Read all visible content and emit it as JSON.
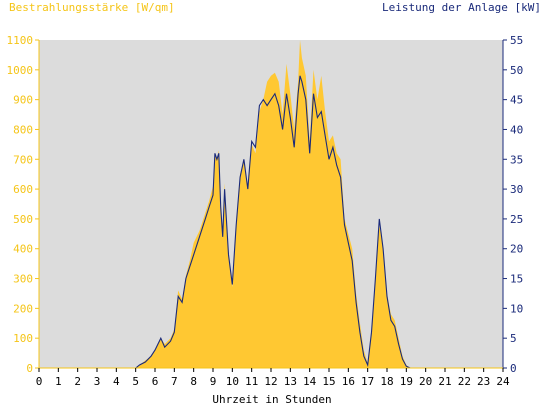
{
  "colors": {
    "left_axis": "#f5c518",
    "right_axis": "#1a2a7a",
    "plot_bg": "#dcdcdc",
    "area": "#ffc832",
    "line": "#1a2a7a",
    "axis_text": "#000000"
  },
  "chart_data": {
    "type": "area",
    "left_title": "Bestrahlungsstärke [W/qm]",
    "right_title": "Leistung der Anlage [kW]",
    "xlabel": "Uhrzeit in Stunden",
    "xlim": [
      0,
      24
    ],
    "ylim_left": [
      0,
      1100
    ],
    "ylim_right": [
      0,
      55
    ],
    "x_ticks": [
      0,
      1,
      2,
      3,
      4,
      5,
      6,
      7,
      8,
      9,
      10,
      11,
      12,
      13,
      14,
      15,
      16,
      17,
      18,
      19,
      20,
      21,
      22,
      23,
      24
    ],
    "y_ticks_left": [
      0,
      100,
      200,
      300,
      400,
      500,
      600,
      700,
      800,
      900,
      1000,
      1100
    ],
    "y_ticks_right": [
      0,
      5,
      10,
      15,
      20,
      25,
      30,
      35,
      40,
      45,
      50,
      55
    ],
    "grid": false,
    "series": [
      {
        "name": "Bestrahlungsstärke [W/qm]",
        "axis": "left",
        "kind": "area",
        "points": [
          [
            0,
            0
          ],
          [
            5.0,
            0
          ],
          [
            5.2,
            10
          ],
          [
            5.5,
            25
          ],
          [
            5.8,
            40
          ],
          [
            6.0,
            60
          ],
          [
            6.3,
            100
          ],
          [
            6.5,
            80
          ],
          [
            6.8,
            100
          ],
          [
            7.0,
            130
          ],
          [
            7.2,
            260
          ],
          [
            7.4,
            230
          ],
          [
            7.6,
            310
          ],
          [
            7.8,
            360
          ],
          [
            8.0,
            420
          ],
          [
            8.3,
            460
          ],
          [
            8.6,
            520
          ],
          [
            8.8,
            560
          ],
          [
            9.0,
            610
          ],
          [
            9.1,
            720
          ],
          [
            9.2,
            700
          ],
          [
            9.3,
            730
          ],
          [
            9.4,
            560
          ],
          [
            9.5,
            450
          ],
          [
            9.6,
            620
          ],
          [
            9.8,
            380
          ],
          [
            10.0,
            270
          ],
          [
            10.2,
            480
          ],
          [
            10.4,
            650
          ],
          [
            10.6,
            700
          ],
          [
            10.8,
            600
          ],
          [
            11.0,
            750
          ],
          [
            11.2,
            720
          ],
          [
            11.4,
            860
          ],
          [
            11.6,
            900
          ],
          [
            11.8,
            960
          ],
          [
            12.0,
            980
          ],
          [
            12.2,
            990
          ],
          [
            12.4,
            960
          ],
          [
            12.6,
            850
          ],
          [
            12.8,
            1020
          ],
          [
            13.0,
            920
          ],
          [
            13.2,
            800
          ],
          [
            13.4,
            960
          ],
          [
            13.5,
            1100
          ],
          [
            13.6,
            1040
          ],
          [
            13.8,
            980
          ],
          [
            14.0,
            760
          ],
          [
            14.2,
            1000
          ],
          [
            14.4,
            900
          ],
          [
            14.6,
            980
          ],
          [
            14.8,
            860
          ],
          [
            15.0,
            760
          ],
          [
            15.2,
            780
          ],
          [
            15.4,
            720
          ],
          [
            15.6,
            700
          ],
          [
            15.8,
            500
          ],
          [
            16.0,
            450
          ],
          [
            16.2,
            400
          ],
          [
            16.4,
            250
          ],
          [
            16.6,
            150
          ],
          [
            16.8,
            60
          ],
          [
            17.0,
            15
          ],
          [
            17.2,
            120
          ],
          [
            17.4,
            300
          ],
          [
            17.6,
            480
          ],
          [
            17.8,
            400
          ],
          [
            18.0,
            250
          ],
          [
            18.2,
            180
          ],
          [
            18.4,
            160
          ],
          [
            18.6,
            100
          ],
          [
            18.8,
            40
          ],
          [
            19.0,
            10
          ],
          [
            19.2,
            0
          ],
          [
            24,
            0
          ]
        ]
      },
      {
        "name": "Leistung der Anlage [kW]",
        "axis": "right",
        "kind": "line",
        "points": [
          [
            0,
            0
          ],
          [
            5.0,
            0
          ],
          [
            5.2,
            0.5
          ],
          [
            5.5,
            1
          ],
          [
            5.8,
            2
          ],
          [
            6.0,
            3
          ],
          [
            6.3,
            5
          ],
          [
            6.5,
            3.5
          ],
          [
            6.8,
            4.5
          ],
          [
            7.0,
            6
          ],
          [
            7.2,
            12
          ],
          [
            7.4,
            11
          ],
          [
            7.6,
            15
          ],
          [
            7.8,
            17
          ],
          [
            8.0,
            19
          ],
          [
            8.3,
            22
          ],
          [
            8.6,
            25
          ],
          [
            8.8,
            27
          ],
          [
            9.0,
            29
          ],
          [
            9.1,
            36
          ],
          [
            9.2,
            35
          ],
          [
            9.3,
            36
          ],
          [
            9.4,
            27
          ],
          [
            9.5,
            22
          ],
          [
            9.6,
            30
          ],
          [
            9.8,
            19
          ],
          [
            10.0,
            14
          ],
          [
            10.2,
            24
          ],
          [
            10.4,
            32
          ],
          [
            10.6,
            35
          ],
          [
            10.8,
            30
          ],
          [
            11.0,
            38
          ],
          [
            11.2,
            37
          ],
          [
            11.4,
            44
          ],
          [
            11.6,
            45
          ],
          [
            11.8,
            44
          ],
          [
            12.0,
            45
          ],
          [
            12.2,
            46
          ],
          [
            12.4,
            44
          ],
          [
            12.6,
            40
          ],
          [
            12.8,
            46
          ],
          [
            13.0,
            42
          ],
          [
            13.2,
            37
          ],
          [
            13.4,
            46
          ],
          [
            13.5,
            49
          ],
          [
            13.6,
            48
          ],
          [
            13.8,
            45
          ],
          [
            14.0,
            36
          ],
          [
            14.2,
            46
          ],
          [
            14.4,
            42
          ],
          [
            14.6,
            43
          ],
          [
            14.8,
            39
          ],
          [
            15.0,
            35
          ],
          [
            15.2,
            37
          ],
          [
            15.4,
            34
          ],
          [
            15.6,
            32
          ],
          [
            15.8,
            24
          ],
          [
            16.0,
            21
          ],
          [
            16.2,
            18
          ],
          [
            16.4,
            11
          ],
          [
            16.6,
            6
          ],
          [
            16.8,
            2
          ],
          [
            17.0,
            0.5
          ],
          [
            17.2,
            6
          ],
          [
            17.4,
            15
          ],
          [
            17.6,
            25
          ],
          [
            17.8,
            20
          ],
          [
            18.0,
            12
          ],
          [
            18.2,
            8
          ],
          [
            18.4,
            7
          ],
          [
            18.6,
            4
          ],
          [
            18.8,
            1.5
          ],
          [
            19.0,
            0.3
          ],
          [
            19.2,
            0
          ],
          [
            24,
            0
          ]
        ]
      }
    ]
  }
}
